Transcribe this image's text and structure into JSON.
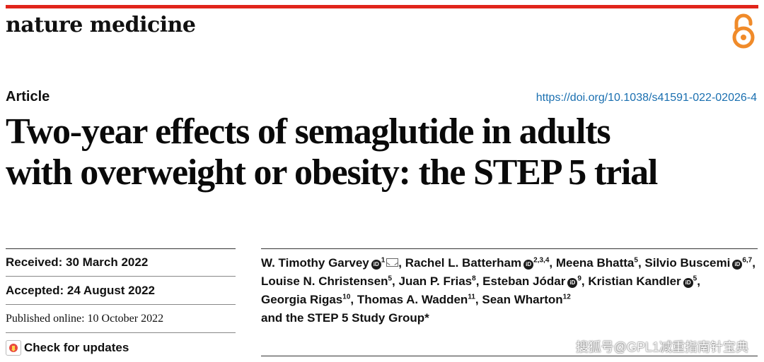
{
  "journal": "nature medicine",
  "article_type": "Article",
  "doi": "https://doi.org/10.1038/s41591-022-02026-4",
  "title_line1": "Two-year effects of semaglutide in adults",
  "title_line2": "with overweight or obesity: the STEP 5 trial",
  "dates": {
    "received": "Received: 30 March 2022",
    "accepted": "Accepted: 24 August 2022",
    "published": "Published online: 10 October 2022"
  },
  "check_updates": "Check for updates",
  "orcid_mark": "iD",
  "authors": [
    {
      "name": "W. Timothy Garvey",
      "sup": "1",
      "orcid": true,
      "mail": true
    },
    {
      "name": "Rachel L. Batterham",
      "sup": "2,3,4",
      "orcid": true
    },
    {
      "name": "Meena Bhatta",
      "sup": "5"
    },
    {
      "name": "Silvio Buscemi",
      "sup": "6,7",
      "orcid": true
    },
    {
      "name": "Louise N. Christensen",
      "sup": "5"
    },
    {
      "name": "Juan P. Frias",
      "sup": "8"
    },
    {
      "name": "Esteban Jódar",
      "sup": "9",
      "orcid": true
    },
    {
      "name": "Kristian Kandler",
      "sup": "5",
      "orcid": true
    },
    {
      "name": "Georgia Rigas",
      "sup": "10"
    },
    {
      "name": "Thomas A. Wadden",
      "sup": "11"
    },
    {
      "name": "Sean Wharton",
      "sup": "12"
    }
  ],
  "group": "and the STEP 5 Study Group*",
  "watermark": "搜狐号@GPL1减重指南针宝典",
  "colors": {
    "accent_red": "#e1251b",
    "link_blue": "#1a6fb0",
    "oa_orange": "#f08b2a"
  },
  "icons": [
    "open-access-icon",
    "orcid-icon",
    "mail-icon",
    "check-updates-icon"
  ]
}
